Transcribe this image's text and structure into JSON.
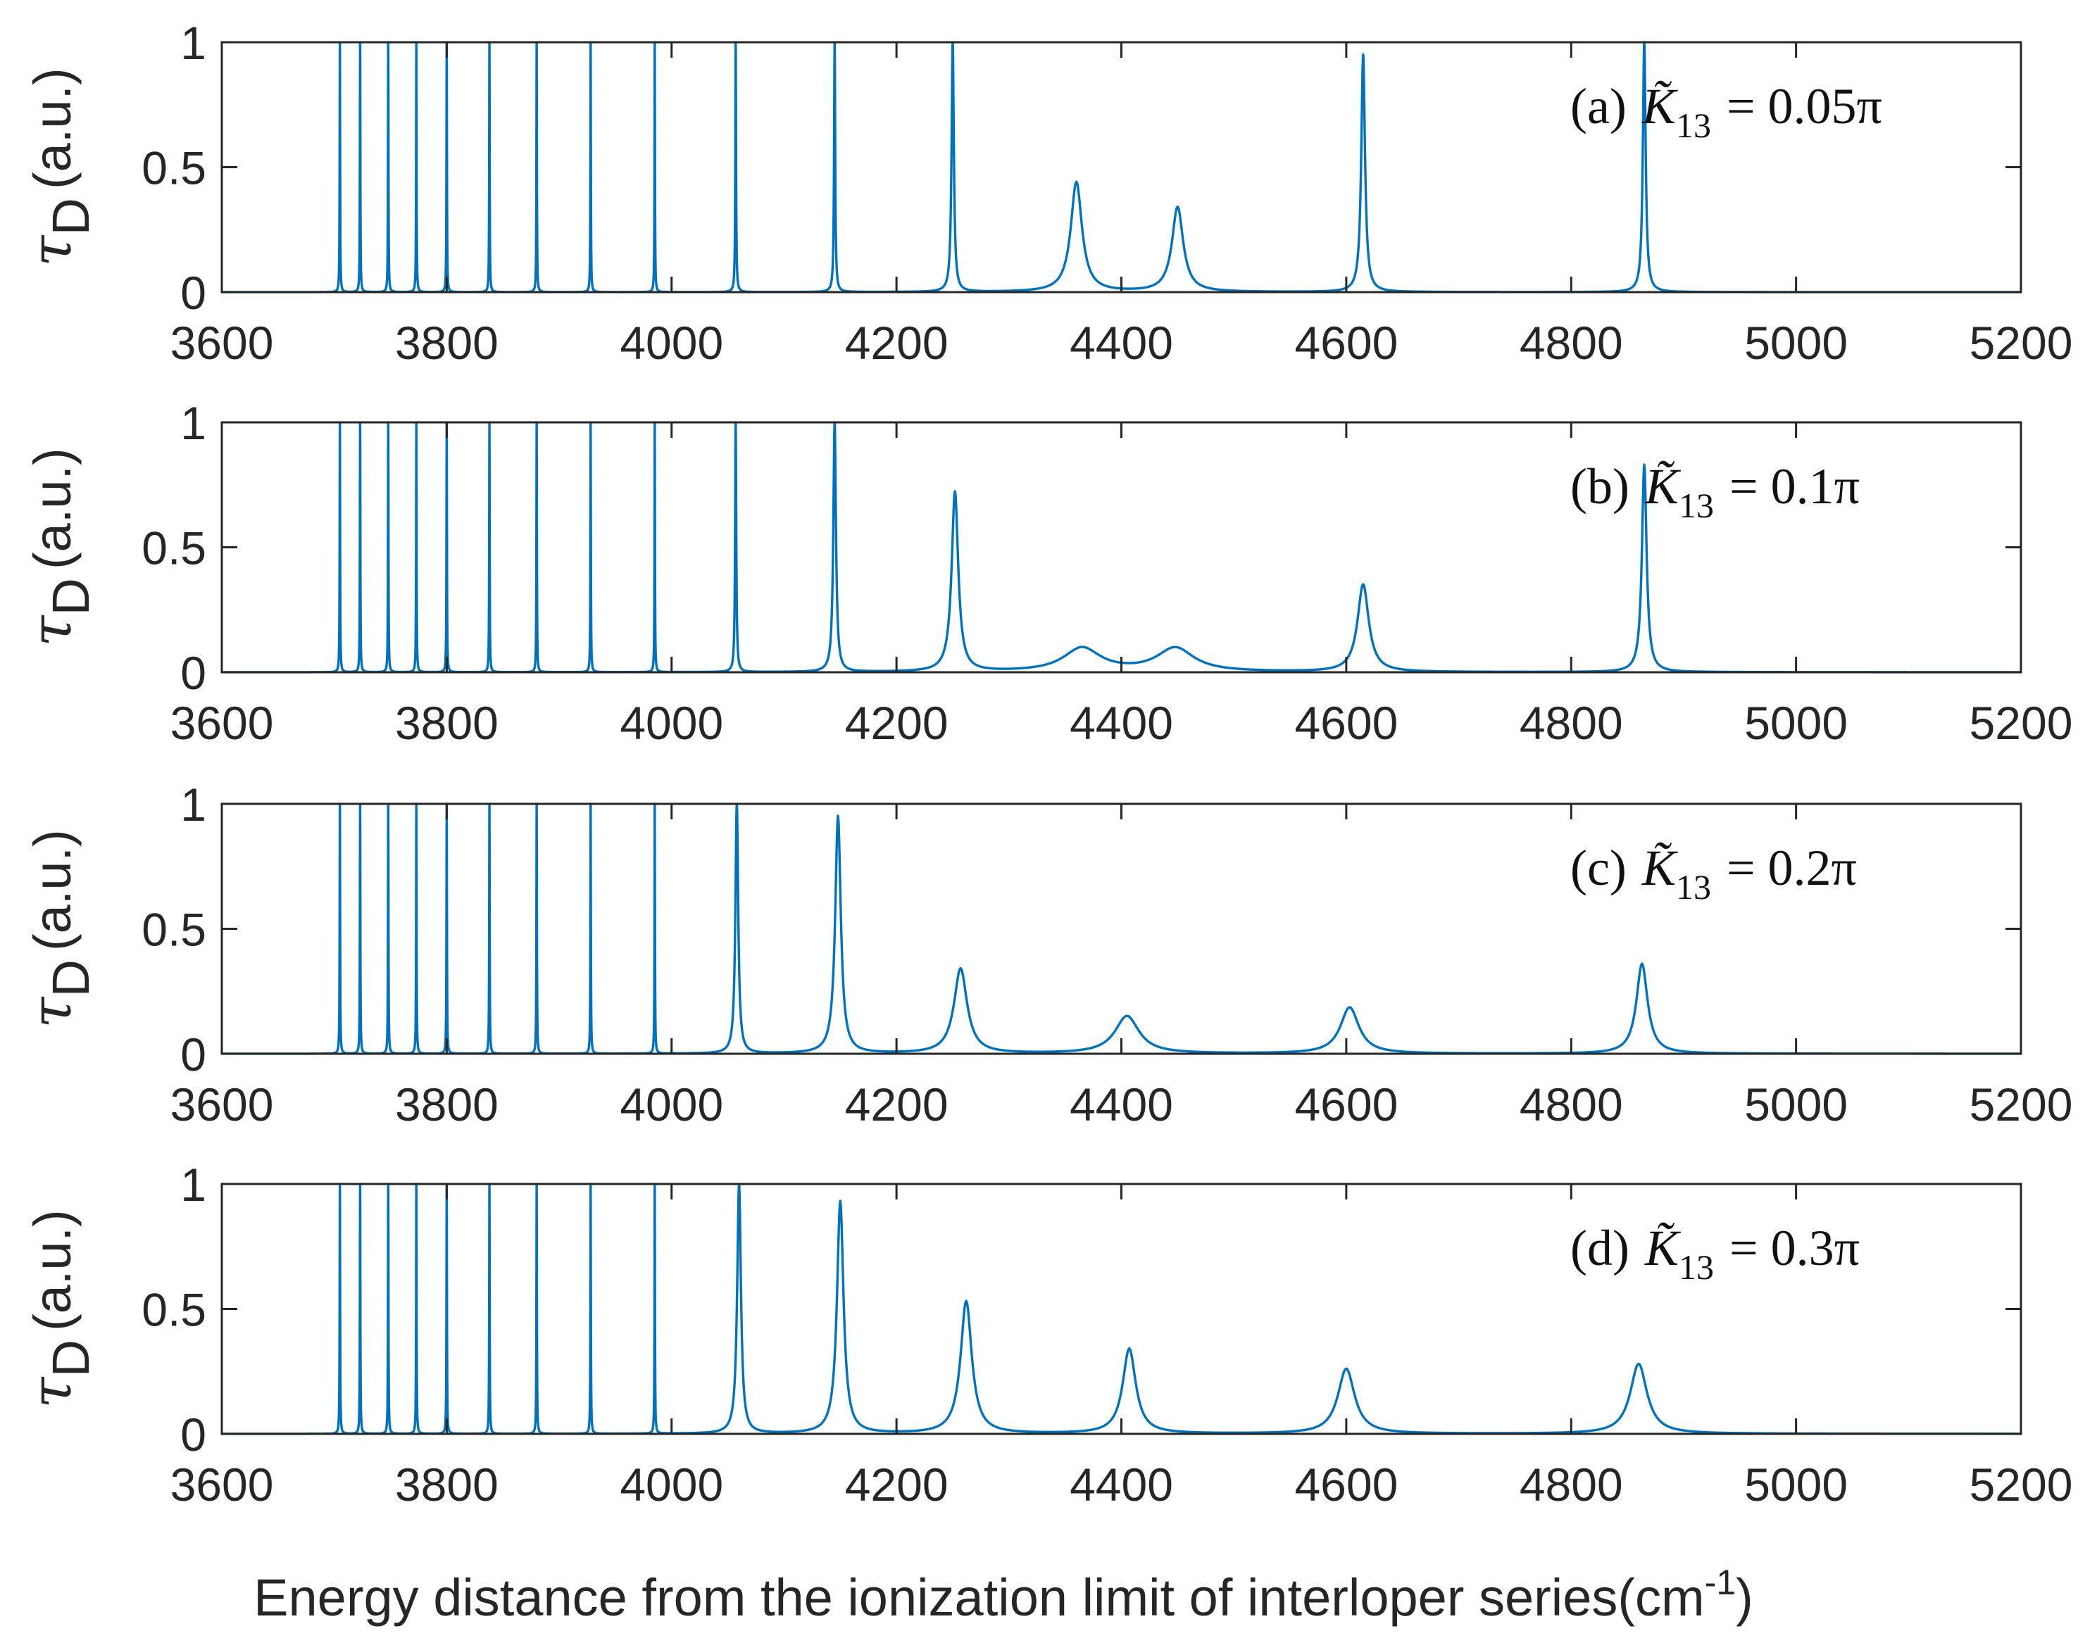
{
  "chart_data": {
    "type": "line",
    "xlabel": "Energy distance from the ionization limit of interloper series(cm",
    "xlabel_superscript": "-1",
    "xlabel_close": ")",
    "ylabel_symbol": "τ",
    "ylabel_subscript": "D",
    "ylabel_unit": "(a.u.)",
    "xlim": [
      3600,
      5200
    ],
    "ylim": [
      0,
      1
    ],
    "xticks": [
      "3600",
      "3800",
      "4000",
      "4200",
      "4400",
      "4600",
      "4800",
      "5000",
      "5200"
    ],
    "yticks": [
      "0",
      "0.5",
      "1"
    ],
    "line_color": "#0072BD",
    "narrow_lines_x": [
      3705,
      3723,
      3748,
      3773,
      3800,
      3838,
      3880,
      3928,
      3985
    ],
    "panels": [
      {
        "label": "(a)",
        "annotation_symbol": "K̃",
        "annotation_subscript": "13",
        "annotation_value": "= 0.05π",
        "peaks": [
          {
            "x": 4057,
            "height": 1.0,
            "width": 0.4
          },
          {
            "x": 4145,
            "height": 1.0,
            "width": 0.6
          },
          {
            "x": 4250,
            "height": 1.0,
            "width": 1.2
          },
          {
            "x": 4360,
            "height": 0.44,
            "width": 6
          },
          {
            "x": 4450,
            "height": 0.34,
            "width": 6
          },
          {
            "x": 4615,
            "height": 0.95,
            "width": 2
          },
          {
            "x": 4865,
            "height": 1.0,
            "width": 1.5
          }
        ]
      },
      {
        "label": "(b)",
        "annotation_symbol": "K̃",
        "annotation_subscript": "13",
        "annotation_value": "= 0.1π",
        "peaks": [
          {
            "x": 4057,
            "height": 1.0,
            "width": 0.6
          },
          {
            "x": 4145,
            "height": 1.0,
            "width": 1.4
          },
          {
            "x": 4252,
            "height": 0.72,
            "width": 3.5
          },
          {
            "x": 4365,
            "height": 0.095,
            "width": 20
          },
          {
            "x": 4448,
            "height": 0.095,
            "width": 20
          },
          {
            "x": 4615,
            "height": 0.35,
            "width": 6
          },
          {
            "x": 4865,
            "height": 0.83,
            "width": 2.5
          }
        ]
      },
      {
        "label": "(c)",
        "annotation_symbol": "K̃",
        "annotation_subscript": "13",
        "annotation_value": "= 0.2π",
        "peaks": [
          {
            "x": 4058,
            "height": 1.0,
            "width": 1.5
          },
          {
            "x": 4148,
            "height": 0.95,
            "width": 3
          },
          {
            "x": 4257,
            "height": 0.34,
            "width": 7
          },
          {
            "x": 4405,
            "height": 0.15,
            "width": 13
          },
          {
            "x": 4603,
            "height": 0.185,
            "width": 10
          },
          {
            "x": 4863,
            "height": 0.36,
            "width": 6
          }
        ]
      },
      {
        "label": "(d)",
        "annotation_symbol": "K̃",
        "annotation_subscript": "13",
        "annotation_value": "= 0.3π",
        "peaks": [
          {
            "x": 4060,
            "height": 1.0,
            "width": 2
          },
          {
            "x": 4150,
            "height": 0.93,
            "width": 3.5
          },
          {
            "x": 4262,
            "height": 0.53,
            "width": 6
          },
          {
            "x": 4407,
            "height": 0.34,
            "width": 7
          },
          {
            "x": 4600,
            "height": 0.26,
            "width": 9
          },
          {
            "x": 4860,
            "height": 0.28,
            "width": 9
          }
        ]
      }
    ]
  }
}
